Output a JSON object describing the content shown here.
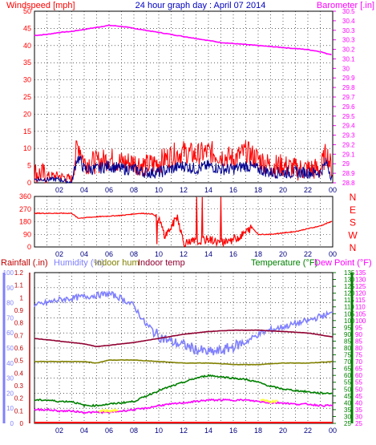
{
  "chart_data": [
    {
      "type": "line",
      "title": "24 hour graph day : April 07 2014",
      "left_label": "Windspeed [mph]",
      "right_label": "Barometer [.in]",
      "x_ticks": [
        "02",
        "04",
        "06",
        "08",
        "10",
        "12",
        "14",
        "16",
        "18",
        "20",
        "22",
        "00"
      ],
      "y_left_ticks": [
        0,
        5,
        10,
        15,
        20,
        25,
        30,
        35,
        40,
        45,
        50
      ],
      "y_left_range": [
        0,
        50
      ],
      "y_right_ticks": [
        "28.8",
        "28.9",
        "29",
        "29.1",
        "29.2",
        "29.3",
        "29.4",
        "29.5",
        "29.6",
        "29.7",
        "29.8",
        "29.9",
        "30",
        "30.1",
        "30.2",
        "30.3",
        "30.3",
        "30.4",
        "30.5"
      ],
      "y_right_range": [
        28.8,
        30.5
      ],
      "series": [
        {
          "name": "Barometer",
          "color": "#ff00ff",
          "axis": "right",
          "x": [
            0,
            1,
            2,
            3,
            4,
            5,
            6,
            7,
            8,
            9,
            10,
            11,
            12,
            13,
            14,
            15,
            16,
            17,
            18,
            19,
            20,
            21,
            22,
            23,
            23.5,
            24
          ],
          "values": [
            30.26,
            30.27,
            30.29,
            30.3,
            30.32,
            30.34,
            30.36,
            30.35,
            30.33,
            30.31,
            30.29,
            30.27,
            30.25,
            30.23,
            30.21,
            30.19,
            30.18,
            30.17,
            30.16,
            30.15,
            30.14,
            30.13,
            30.12,
            30.1,
            30.08,
            30.07
          ]
        },
        {
          "name": "Wind Gust",
          "color": "#ff0000",
          "axis": "left",
          "x": [
            0,
            1,
            2,
            3,
            3.4,
            3.6,
            4,
            5,
            6,
            7,
            8,
            9,
            10,
            11,
            12,
            13,
            14,
            15,
            16,
            17,
            18,
            19,
            20,
            21,
            22,
            23,
            23.5,
            24
          ],
          "values": [
            3,
            2,
            2,
            1,
            10,
            11,
            6,
            6,
            7,
            6,
            6,
            5,
            6,
            8,
            9,
            8,
            9,
            8,
            7,
            9,
            7,
            5,
            5,
            4,
            4,
            4,
            9,
            3
          ]
        },
        {
          "name": "Windspeed",
          "color": "#000090",
          "axis": "left",
          "x": [
            0,
            1,
            2,
            3,
            3.4,
            3.6,
            4,
            5,
            6,
            7,
            8,
            9,
            10,
            11,
            12,
            13,
            14,
            15,
            16,
            17,
            18,
            19,
            20,
            21,
            22,
            23,
            23.5,
            24
          ],
          "values": [
            1,
            1,
            1,
            0,
            7,
            7,
            4,
            4,
            5,
            4,
            4,
            3,
            3,
            4,
            5,
            4,
            5,
            4,
            4,
            5,
            4,
            3,
            3,
            3,
            3,
            3,
            6,
            1
          ]
        }
      ]
    },
    {
      "type": "line",
      "left_ticks": [
        0,
        90,
        180,
        270,
        360
      ],
      "right_labels": [
        "N",
        "W",
        "S",
        "E",
        "N"
      ],
      "y_range": [
        0,
        360
      ],
      "series": [
        {
          "name": "Wind direction",
          "color": "#ff0000",
          "x": [
            0,
            2,
            3,
            3.5,
            5,
            7,
            8.5,
            9.5,
            10,
            10.5,
            11,
            11.5,
            12,
            13,
            14,
            15,
            16,
            16.5,
            17.5,
            18,
            19,
            21,
            23,
            24
          ],
          "values": [
            240,
            240,
            240,
            205,
            215,
            225,
            240,
            235,
            200,
            80,
            140,
            220,
            30,
            40,
            55,
            30,
            60,
            70,
            140,
            90,
            90,
            110,
            150,
            185
          ]
        }
      ]
    },
    {
      "type": "line",
      "labels": {
        "rainfall": "Rainfall (.in)",
        "humidity": "Humidity (%)",
        "indoor_hum": "Indoor hum",
        "indoor_temp": "Indoor temp",
        "temperature": "Temperature (°F)",
        "dew_point": "Dew Point (°F)"
      },
      "rain_ticks": [
        "0",
        "0.1",
        "0.2",
        "0.3",
        "0.4",
        "0.5",
        "0.6",
        "0.7",
        "0.8",
        "0.9",
        "1",
        "1.1",
        "1.2"
      ],
      "hum_ticks": [
        0,
        10,
        20,
        30,
        40,
        50,
        60,
        70,
        80,
        90,
        100
      ],
      "temp_ticks": [
        25,
        30,
        35,
        40,
        45,
        50,
        55,
        60,
        65,
        70,
        75,
        80,
        85,
        90,
        95,
        100,
        105,
        110,
        115,
        120,
        125,
        130,
        135
      ],
      "temp_range": [
        25,
        135
      ],
      "series": [
        {
          "name": "Humidity",
          "color": "#8080ff",
          "unit": "%",
          "x": [
            0,
            1,
            2,
            3,
            4,
            5,
            6,
            7,
            8,
            9,
            10,
            11,
            12,
            13,
            14,
            15,
            16,
            17,
            18,
            19,
            20,
            21,
            22,
            23,
            24
          ],
          "values": [
            78,
            80,
            82,
            83,
            84,
            85,
            86,
            83,
            78,
            65,
            58,
            54,
            52,
            49,
            47,
            48,
            51,
            54,
            59,
            62,
            64,
            66,
            68,
            71,
            73
          ]
        },
        {
          "name": "Indoor temp",
          "color": "#900030",
          "unit": "°F",
          "x": [
            0,
            2,
            4,
            5,
            6,
            8,
            10,
            12,
            14,
            16,
            18,
            20,
            22,
            24
          ],
          "values": [
            87,
            85,
            83,
            81,
            82,
            84,
            87,
            90,
            92,
            93,
            93,
            92,
            91,
            88
          ]
        },
        {
          "name": "Indoor hum",
          "color": "#808000",
          "unit": "%",
          "x": [
            0,
            2,
            4,
            5,
            6,
            8,
            10,
            12,
            14,
            16,
            18,
            20,
            22,
            24
          ],
          "values": [
            41,
            41,
            41,
            40,
            42,
            42,
            41,
            40,
            40,
            39,
            39,
            40,
            40,
            41
          ]
        },
        {
          "name": "Temperature",
          "color": "#008000",
          "unit": "°F",
          "x": [
            0,
            1,
            2,
            3,
            4,
            5,
            6,
            7,
            8,
            9,
            10,
            11,
            12,
            13,
            14,
            15,
            16,
            17,
            18,
            19,
            20,
            21,
            22,
            23,
            24
          ],
          "values": [
            42,
            42,
            41,
            41,
            38,
            38,
            39,
            40,
            41,
            45,
            49,
            52,
            55,
            58,
            60,
            59,
            58,
            57,
            55,
            52,
            50,
            49,
            48,
            47,
            47
          ]
        },
        {
          "name": "Dew Point",
          "color": "#ff00ff",
          "unit": "°F",
          "x": [
            0,
            1,
            2,
            3,
            4,
            5,
            6,
            7,
            8,
            9,
            10,
            11,
            12,
            13,
            14,
            15,
            16,
            17,
            18,
            19,
            20,
            21,
            22,
            23,
            24
          ],
          "values": [
            35,
            35,
            34,
            34,
            33,
            33,
            33,
            34,
            35,
            36,
            38,
            39,
            40,
            41,
            42,
            42,
            42,
            42,
            41,
            40,
            40,
            39,
            39,
            38,
            38
          ]
        },
        {
          "name": "Rainfall",
          "color": "#ff0000",
          "unit": "in",
          "x": [
            0,
            24
          ],
          "values": [
            0,
            0
          ]
        }
      ]
    }
  ]
}
